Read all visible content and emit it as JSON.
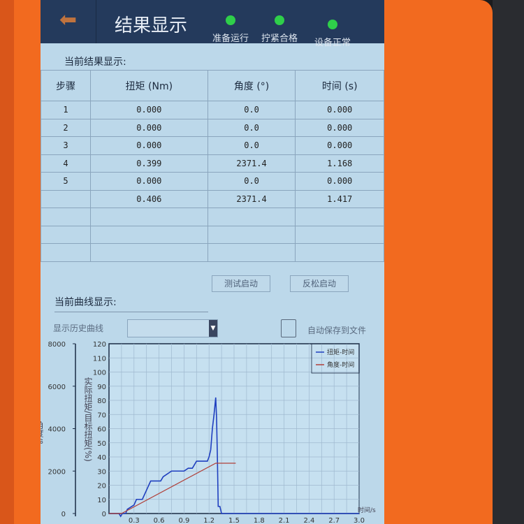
{
  "header": {
    "back_icon": "arrow-left-icon",
    "title": "结果显示",
    "indicators": [
      {
        "label": "准备运行",
        "color": "#2fcf4a"
      },
      {
        "label": "拧紧合格",
        "color": "#2fcf4a"
      },
      {
        "label": "设备正常",
        "color": "#2fcf4a"
      }
    ]
  },
  "results": {
    "title": "当前结果显示:",
    "columns": [
      "步骤",
      "扭矩 (Nm)",
      "角度 (°)",
      "时间 (s)"
    ],
    "rows": [
      [
        "1",
        "0.000",
        "0.0",
        "0.000"
      ],
      [
        "2",
        "0.000",
        "0.0",
        "0.000"
      ],
      [
        "3",
        "0.000",
        "0.0",
        "0.000"
      ],
      [
        "4",
        "0.399",
        "2371.4",
        "1.168"
      ],
      [
        "5",
        "0.000",
        "0.0",
        "0.000"
      ],
      [
        "",
        "0.406",
        "2371.4",
        "1.417"
      ],
      [
        "",
        "",
        "",
        ""
      ],
      [
        "",
        "",
        "",
        ""
      ],
      [
        "",
        "",
        "",
        ""
      ]
    ]
  },
  "buttons": {
    "test_start": "测试启动",
    "loosen_start": "反松启动"
  },
  "curve": {
    "title": "当前曲线显示:",
    "history_label": "显示历史曲线",
    "history_value": "",
    "autosave_label": "自动保存到文件",
    "autosave_checked": false
  },
  "chart_data": {
    "type": "line",
    "xlabel": "时间/s",
    "ylabel": "实际扭矩/目标扭矩(%)",
    "y2label": "角度/°",
    "xlim": [
      0,
      3.0
    ],
    "ylim": [
      0,
      120
    ],
    "y2lim": [
      0,
      8000
    ],
    "grid": true,
    "legend": "top-right",
    "xticks": [
      "0.3",
      "0.6",
      "0.9",
      "1.2",
      "1.5",
      "1.8",
      "2.1",
      "2.4",
      "2.7",
      "3.0"
    ],
    "yticks": [
      "0",
      "10",
      "20",
      "30",
      "40",
      "50",
      "60",
      "70",
      "80",
      "90",
      "100",
      "110",
      "120"
    ],
    "y2ticks": [
      "0",
      "2000",
      "4000",
      "6000",
      "8000"
    ],
    "series": [
      {
        "name": "扭矩-时间",
        "color": "#1f3fbf",
        "axis": "left",
        "points": [
          [
            0,
            0
          ],
          [
            0.12,
            0
          ],
          [
            0.14,
            -2
          ],
          [
            0.16,
            0
          ],
          [
            0.2,
            0
          ],
          [
            0.22,
            3
          ],
          [
            0.3,
            6
          ],
          [
            0.33,
            10
          ],
          [
            0.4,
            10
          ],
          [
            0.5,
            23
          ],
          [
            0.62,
            23
          ],
          [
            0.65,
            26
          ],
          [
            0.7,
            28
          ],
          [
            0.75,
            30
          ],
          [
            0.9,
            30
          ],
          [
            0.95,
            32
          ],
          [
            1.0,
            32
          ],
          [
            1.05,
            37
          ],
          [
            1.18,
            37
          ],
          [
            1.2,
            40
          ],
          [
            1.22,
            45
          ],
          [
            1.24,
            60
          ],
          [
            1.26,
            70
          ],
          [
            1.28,
            82
          ],
          [
            1.29,
            68
          ],
          [
            1.3,
            40
          ],
          [
            1.31,
            5
          ],
          [
            1.33,
            5
          ],
          [
            1.35,
            0
          ],
          [
            3.0,
            0
          ]
        ]
      },
      {
        "name": "角度-时间",
        "color": "#b0403a",
        "axis": "right",
        "points": [
          [
            0,
            0
          ],
          [
            0.15,
            0
          ],
          [
            1.28,
            2371.4
          ],
          [
            1.52,
            2371.4
          ]
        ]
      }
    ]
  }
}
